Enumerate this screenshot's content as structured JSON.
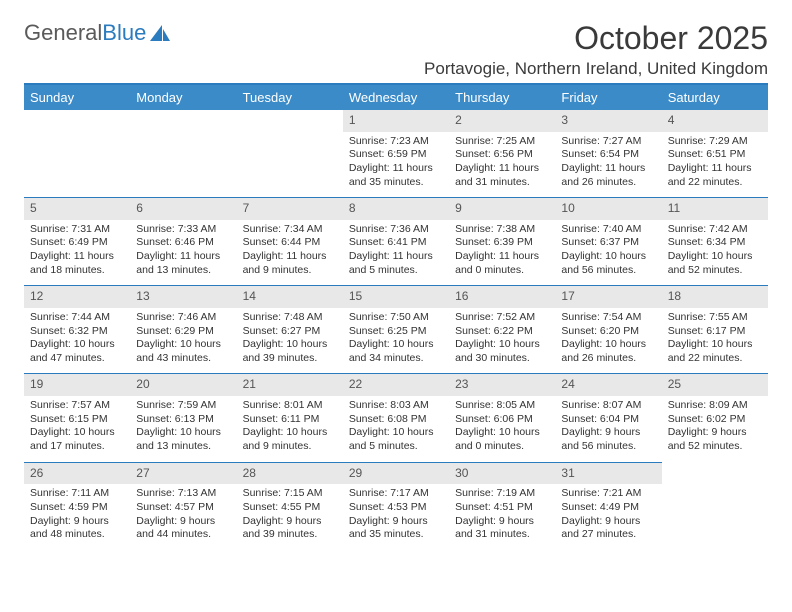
{
  "brand": {
    "text_gray": "General",
    "text_blue": "Blue"
  },
  "title": {
    "month": "October 2025",
    "location": "Portavogie, Northern Ireland, United Kingdom"
  },
  "colors": {
    "header_bg": "#3b8bc9",
    "header_text": "#ffffff",
    "border_accent": "#2b7bbf",
    "daynum_bg": "#e8e8e8",
    "text": "#333333",
    "logo_gray": "#5a5a5a",
    "logo_blue": "#2b7bbf"
  },
  "font": {
    "family": "Arial",
    "title_size_pt": 24,
    "location_size_pt": 13,
    "header_size_pt": 10,
    "body_size_pt": 8
  },
  "day_labels": [
    "Sunday",
    "Monday",
    "Tuesday",
    "Wednesday",
    "Thursday",
    "Friday",
    "Saturday"
  ],
  "weeks": [
    [
      null,
      null,
      null,
      {
        "n": "1",
        "sr": "7:23 AM",
        "ss": "6:59 PM",
        "dl": "11 hours and 35 minutes."
      },
      {
        "n": "2",
        "sr": "7:25 AM",
        "ss": "6:56 PM",
        "dl": "11 hours and 31 minutes."
      },
      {
        "n": "3",
        "sr": "7:27 AM",
        "ss": "6:54 PM",
        "dl": "11 hours and 26 minutes."
      },
      {
        "n": "4",
        "sr": "7:29 AM",
        "ss": "6:51 PM",
        "dl": "11 hours and 22 minutes."
      }
    ],
    [
      {
        "n": "5",
        "sr": "7:31 AM",
        "ss": "6:49 PM",
        "dl": "11 hours and 18 minutes."
      },
      {
        "n": "6",
        "sr": "7:33 AM",
        "ss": "6:46 PM",
        "dl": "11 hours and 13 minutes."
      },
      {
        "n": "7",
        "sr": "7:34 AM",
        "ss": "6:44 PM",
        "dl": "11 hours and 9 minutes."
      },
      {
        "n": "8",
        "sr": "7:36 AM",
        "ss": "6:41 PM",
        "dl": "11 hours and 5 minutes."
      },
      {
        "n": "9",
        "sr": "7:38 AM",
        "ss": "6:39 PM",
        "dl": "11 hours and 0 minutes."
      },
      {
        "n": "10",
        "sr": "7:40 AM",
        "ss": "6:37 PM",
        "dl": "10 hours and 56 minutes."
      },
      {
        "n": "11",
        "sr": "7:42 AM",
        "ss": "6:34 PM",
        "dl": "10 hours and 52 minutes."
      }
    ],
    [
      {
        "n": "12",
        "sr": "7:44 AM",
        "ss": "6:32 PM",
        "dl": "10 hours and 47 minutes."
      },
      {
        "n": "13",
        "sr": "7:46 AM",
        "ss": "6:29 PM",
        "dl": "10 hours and 43 minutes."
      },
      {
        "n": "14",
        "sr": "7:48 AM",
        "ss": "6:27 PM",
        "dl": "10 hours and 39 minutes."
      },
      {
        "n": "15",
        "sr": "7:50 AM",
        "ss": "6:25 PM",
        "dl": "10 hours and 34 minutes."
      },
      {
        "n": "16",
        "sr": "7:52 AM",
        "ss": "6:22 PM",
        "dl": "10 hours and 30 minutes."
      },
      {
        "n": "17",
        "sr": "7:54 AM",
        "ss": "6:20 PM",
        "dl": "10 hours and 26 minutes."
      },
      {
        "n": "18",
        "sr": "7:55 AM",
        "ss": "6:17 PM",
        "dl": "10 hours and 22 minutes."
      }
    ],
    [
      {
        "n": "19",
        "sr": "7:57 AM",
        "ss": "6:15 PM",
        "dl": "10 hours and 17 minutes."
      },
      {
        "n": "20",
        "sr": "7:59 AM",
        "ss": "6:13 PM",
        "dl": "10 hours and 13 minutes."
      },
      {
        "n": "21",
        "sr": "8:01 AM",
        "ss": "6:11 PM",
        "dl": "10 hours and 9 minutes."
      },
      {
        "n": "22",
        "sr": "8:03 AM",
        "ss": "6:08 PM",
        "dl": "10 hours and 5 minutes."
      },
      {
        "n": "23",
        "sr": "8:05 AM",
        "ss": "6:06 PM",
        "dl": "10 hours and 0 minutes."
      },
      {
        "n": "24",
        "sr": "8:07 AM",
        "ss": "6:04 PM",
        "dl": "9 hours and 56 minutes."
      },
      {
        "n": "25",
        "sr": "8:09 AM",
        "ss": "6:02 PM",
        "dl": "9 hours and 52 minutes."
      }
    ],
    [
      {
        "n": "26",
        "sr": "7:11 AM",
        "ss": "4:59 PM",
        "dl": "9 hours and 48 minutes."
      },
      {
        "n": "27",
        "sr": "7:13 AM",
        "ss": "4:57 PM",
        "dl": "9 hours and 44 minutes."
      },
      {
        "n": "28",
        "sr": "7:15 AM",
        "ss": "4:55 PM",
        "dl": "9 hours and 39 minutes."
      },
      {
        "n": "29",
        "sr": "7:17 AM",
        "ss": "4:53 PM",
        "dl": "9 hours and 35 minutes."
      },
      {
        "n": "30",
        "sr": "7:19 AM",
        "ss": "4:51 PM",
        "dl": "9 hours and 31 minutes."
      },
      {
        "n": "31",
        "sr": "7:21 AM",
        "ss": "4:49 PM",
        "dl": "9 hours and 27 minutes."
      },
      null
    ]
  ],
  "labels": {
    "sunrise": "Sunrise:",
    "sunset": "Sunset:",
    "daylight": "Daylight:"
  }
}
